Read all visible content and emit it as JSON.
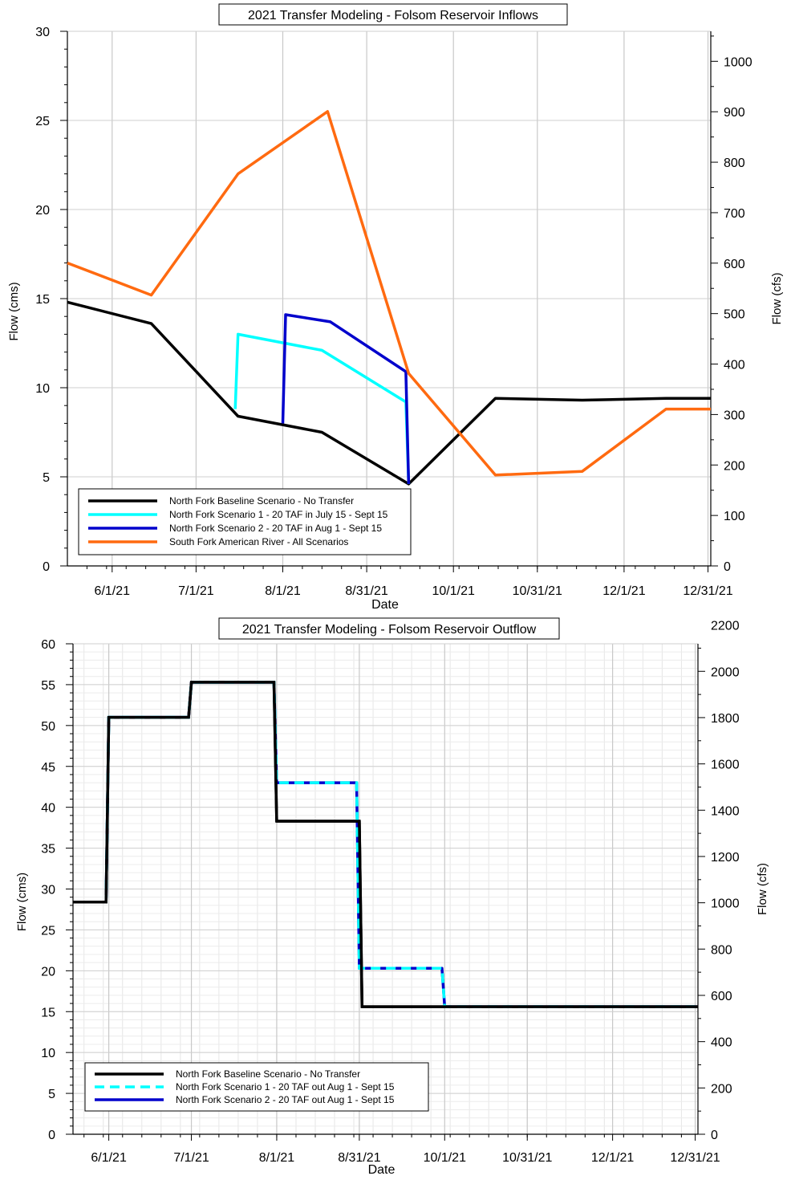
{
  "chart_data": [
    {
      "type": "line",
      "title": "2021 Transfer Modeling - Folsom Reservoir Inflows",
      "xlabel": "Date",
      "ylabel": "Flow (cms)",
      "y2label": "Flow (cfs)",
      "ylim": [
        0,
        30
      ],
      "y2lim": [
        0,
        1059.4
      ],
      "xlim": [
        "2021-05-16",
        "2022-01-01"
      ],
      "x_tick_labels": [
        "6/1/21",
        "7/1/21",
        "8/1/21",
        "8/31/21",
        "10/1/21",
        "10/31/21",
        "12/1/21",
        "12/31/21"
      ],
      "y_ticks": [
        0,
        5,
        10,
        15,
        20,
        25,
        30
      ],
      "y2_ticks": [
        0,
        100,
        200,
        300,
        400,
        500,
        600,
        700,
        800,
        900,
        1000
      ],
      "grid": true,
      "legend_position": "bottom-left",
      "series": [
        {
          "name": "North Fork Baseline Scenario - No Transfer",
          "color": "#000000",
          "dash": false,
          "points": [
            [
              "2021-05-16",
              14.8
            ],
            [
              "2021-06-15",
              13.6
            ],
            [
              "2021-07-16",
              8.4
            ],
            [
              "2021-08-15",
              7.5
            ],
            [
              "2021-09-15",
              4.6
            ],
            [
              "2021-10-16",
              9.4
            ],
            [
              "2021-11-16",
              9.3
            ],
            [
              "2021-12-16",
              9.4
            ],
            [
              "2022-01-01",
              9.4
            ]
          ]
        },
        {
          "name": "North Fork Scenario 1 - 20 TAF in July 15 - Sept 15",
          "color": "#00ffff",
          "dash": false,
          "points": [
            [
              "2021-07-15",
              8.8
            ],
            [
              "2021-07-16",
              13.0
            ],
            [
              "2021-08-15",
              12.1
            ],
            [
              "2021-09-14",
              9.2
            ],
            [
              "2021-09-15",
              4.6
            ]
          ]
        },
        {
          "name": "North Fork Scenario 2 - 20 TAF in Aug 1 - Sept 15",
          "color": "#0000cc",
          "dash": false,
          "points": [
            [
              "2021-08-01",
              8.0
            ],
            [
              "2021-08-02",
              14.1
            ],
            [
              "2021-08-18",
              13.7
            ],
            [
              "2021-09-14",
              10.9
            ],
            [
              "2021-09-15",
              4.6
            ]
          ]
        },
        {
          "name": "South Fork American River - All Scenarios",
          "color": "#ff6a10",
          "dash": false,
          "points": [
            [
              "2021-05-16",
              17.0
            ],
            [
              "2021-06-15",
              15.2
            ],
            [
              "2021-07-16",
              22.0
            ],
            [
              "2021-08-17",
              25.5
            ],
            [
              "2021-09-15",
              10.8
            ],
            [
              "2021-10-16",
              5.1
            ],
            [
              "2021-11-16",
              5.3
            ],
            [
              "2021-12-16",
              8.8
            ],
            [
              "2022-01-01",
              8.8
            ]
          ]
        }
      ]
    },
    {
      "type": "line",
      "title": "2021 Transfer Modeling - Folsom Reservoir Outflow",
      "xlabel": "Date",
      "ylabel": "Flow (cms)",
      "y2label": "Flow (cfs)",
      "ylim": [
        0,
        60
      ],
      "y2lim": [
        0,
        2118.9
      ],
      "xlim": [
        "2021-05-19",
        "2022-01-01"
      ],
      "x_tick_labels": [
        "6/1/21",
        "7/1/21",
        "8/1/21",
        "8/31/21",
        "10/1/21",
        "10/31/21",
        "12/1/21",
        "12/31/21"
      ],
      "y_ticks": [
        0,
        5,
        10,
        15,
        20,
        25,
        30,
        35,
        40,
        45,
        50,
        55,
        60
      ],
      "y2_ticks": [
        0,
        200,
        400,
        600,
        800,
        1000,
        1200,
        1400,
        1600,
        1800,
        2000,
        2200
      ],
      "grid": true,
      "legend_position": "bottom-left",
      "series": [
        {
          "name": "North Fork Scenario 1 - 20 TAF out Aug 1 - Sept 15",
          "color": "#00ffff",
          "dash": true,
          "points": [
            [
              "2021-05-19",
              28.4
            ],
            [
              "2021-05-31",
              28.4
            ],
            [
              "2021-06-01",
              51.0
            ],
            [
              "2021-06-30",
              51.0
            ],
            [
              "2021-07-01",
              55.3
            ],
            [
              "2021-07-31",
              55.3
            ],
            [
              "2021-08-01",
              43.0
            ],
            [
              "2021-08-30",
              43.0
            ],
            [
              "2021-08-31",
              20.3
            ],
            [
              "2021-09-30",
              20.3
            ],
            [
              "2021-10-01",
              15.6
            ],
            [
              "2022-01-01",
              15.6
            ]
          ]
        },
        {
          "name": "North Fork Scenario 2 - 20 TAF out Aug 1 - Sept 15",
          "color": "#0000cc",
          "dash": false,
          "points": [
            [
              "2021-05-19",
              28.4
            ],
            [
              "2021-05-31",
              28.4
            ],
            [
              "2021-06-01",
              51.0
            ],
            [
              "2021-06-30",
              51.0
            ],
            [
              "2021-07-01",
              55.3
            ],
            [
              "2021-07-31",
              55.3
            ],
            [
              "2021-08-01",
              43.0
            ],
            [
              "2021-08-30",
              43.0
            ],
            [
              "2021-08-31",
              20.3
            ],
            [
              "2021-09-30",
              20.3
            ],
            [
              "2021-10-01",
              15.6
            ],
            [
              "2022-01-01",
              15.6
            ]
          ]
        },
        {
          "name": "North Fork Baseline Scenario - No Transfer",
          "color": "#000000",
          "dash": false,
          "points": [
            [
              "2021-05-19",
              28.4
            ],
            [
              "2021-05-31",
              28.4
            ],
            [
              "2021-06-01",
              51.0
            ],
            [
              "2021-06-30",
              51.0
            ],
            [
              "2021-07-01",
              55.3
            ],
            [
              "2021-07-31",
              55.3
            ],
            [
              "2021-08-01",
              38.3
            ],
            [
              "2021-08-31",
              38.3
            ],
            [
              "2021-09-01",
              15.6
            ],
            [
              "2022-01-01",
              15.6
            ]
          ]
        }
      ]
    }
  ]
}
